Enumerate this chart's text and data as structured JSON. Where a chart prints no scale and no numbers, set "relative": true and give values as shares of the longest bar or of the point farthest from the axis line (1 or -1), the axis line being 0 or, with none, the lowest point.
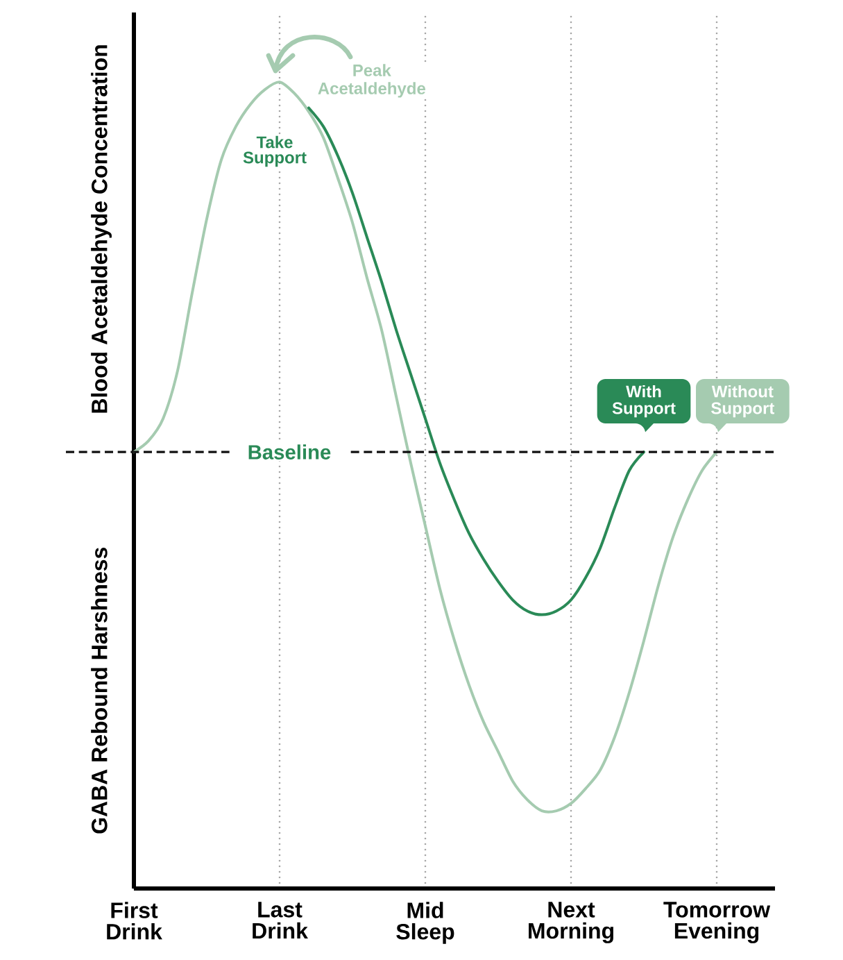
{
  "chart_data": {
    "type": "line",
    "relative": true,
    "ylabel": "Blood Acetaldehyde Concentration",
    "categories": [
      "First Drink",
      null,
      null,
      null,
      null,
      null,
      null,
      null,
      null,
      null,
      "Last Drink",
      null,
      null,
      null,
      null,
      null,
      null,
      null,
      null,
      null,
      "Mid Sleep",
      null,
      null,
      null,
      null,
      null,
      null,
      null,
      null,
      null,
      "Next Morning",
      null,
      null,
      null,
      null,
      null,
      null,
      null,
      null,
      null,
      "Tomorrow Evening"
    ],
    "grid": "x",
    "series": [
      {
        "name": "With Support",
        "color": "#2a8a57",
        "values": [
          null,
          null,
          null,
          null,
          null,
          null,
          null,
          null,
          null,
          null,
          null,
          null,
          0.93,
          0.88,
          0.8,
          0.7,
          0.58,
          0.46,
          0.33,
          0.21,
          0.09,
          -0.03,
          -0.13,
          -0.22,
          -0.29,
          -0.35,
          -0.4,
          -0.43,
          -0.44,
          -0.43,
          -0.4,
          -0.34,
          -0.26,
          -0.15,
          -0.05,
          0,
          null,
          null,
          null,
          null,
          null
        ]
      },
      {
        "name": "Without Support",
        "color": "#a5cbb0",
        "values": [
          0,
          0.03,
          0.09,
          0.22,
          0.43,
          0.63,
          0.79,
          0.88,
          0.94,
          0.98,
          1,
          0.97,
          0.92,
          0.85,
          0.74,
          0.62,
          0.47,
          0.33,
          0.15,
          -0.03,
          -0.2,
          -0.37,
          -0.51,
          -0.63,
          -0.73,
          -0.81,
          -0.89,
          -0.94,
          -0.97,
          -0.97,
          -0.95,
          -0.91,
          -0.86,
          -0.77,
          -0.65,
          -0.51,
          -0.36,
          -0.23,
          -0.13,
          -0.05,
          0
        ]
      }
    ],
    "ref_lines": [
      {
        "axis": "y",
        "value": 0,
        "label": "Baseline",
        "color": "#111111",
        "line_style": "dashed"
      }
    ],
    "annotations": [
      "GABA Rebound Harshness",
      "Peak Acetaldehyde",
      "Take Support"
    ]
  }
}
